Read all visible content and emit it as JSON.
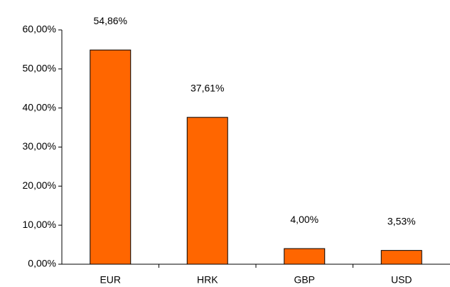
{
  "chart_data": {
    "type": "bar",
    "categories": [
      "EUR",
      "HRK",
      "GBP",
      "USD"
    ],
    "values": [
      54.86,
      37.61,
      4.0,
      3.53
    ],
    "value_labels": [
      "54,86%",
      "37,61%",
      "4,00%",
      "3,53%"
    ],
    "color": "#ff6600",
    "ylim": [
      0,
      60
    ],
    "yticks": [
      {
        "value": 0,
        "label": "0,00%"
      },
      {
        "value": 10,
        "label": "10,00%"
      },
      {
        "value": 20,
        "label": "20,00%"
      },
      {
        "value": 30,
        "label": "30,00%"
      },
      {
        "value": 40,
        "label": "40,00%"
      },
      {
        "value": 50,
        "label": "50,00%"
      },
      {
        "value": 60,
        "label": "60,00%"
      }
    ],
    "grid": false
  }
}
